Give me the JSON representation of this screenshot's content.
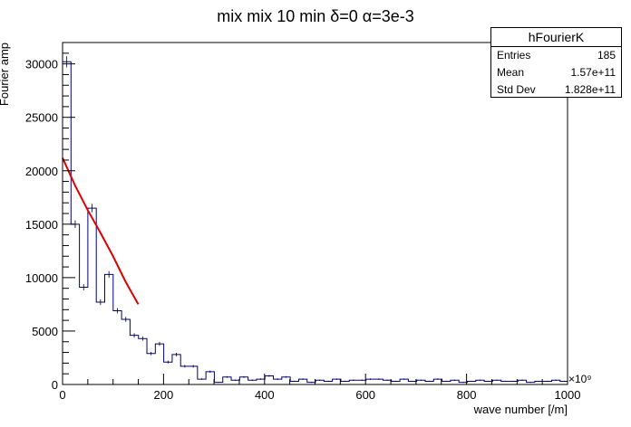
{
  "chart_data": {
    "type": "histogram",
    "title": "mix mix 10 min  δ=0 α=3e-3",
    "xlabel": "wave number [/m]",
    "ylabel": "Fourier amp",
    "x_exponent_label": "×10⁹",
    "xlim": [
      0,
      1000
    ],
    "ylim": [
      0,
      32000
    ],
    "x_ticks": [
      0,
      200,
      400,
      600,
      800,
      1000
    ],
    "y_ticks": [
      0,
      5000,
      10000,
      15000,
      20000,
      25000,
      30000
    ],
    "bin_width": 16.7,
    "bin_counts": [
      30200,
      15000,
      9100,
      16500,
      7700,
      10300,
      6900,
      6100,
      4600,
      4300,
      2900,
      3800,
      2100,
      2800,
      1700,
      1700,
      500,
      1200,
      200,
      700,
      400,
      700,
      400,
      500,
      800,
      500,
      700,
      300,
      500,
      200,
      400,
      300,
      500,
      300,
      400,
      400,
      500,
      500,
      400,
      300,
      500,
      300,
      400,
      300,
      500,
      300,
      400,
      200,
      300,
      400,
      300,
      400,
      300,
      300,
      400,
      200,
      300,
      300,
      400,
      300
    ],
    "histogram_color": "#00007a",
    "fit": {
      "color": "#e00000",
      "x": [
        0,
        25,
        50,
        75,
        100,
        125,
        150
      ],
      "y": [
        21200,
        18600,
        16300,
        14200,
        12000,
        9600,
        7500
      ]
    },
    "stats": {
      "name": "hFourierK",
      "rows": [
        {
          "label": "Entries",
          "value": "185"
        },
        {
          "label": "Mean",
          "value": "1.57e+11"
        },
        {
          "label": "Std Dev",
          "value": "1.828e+11"
        }
      ]
    }
  }
}
